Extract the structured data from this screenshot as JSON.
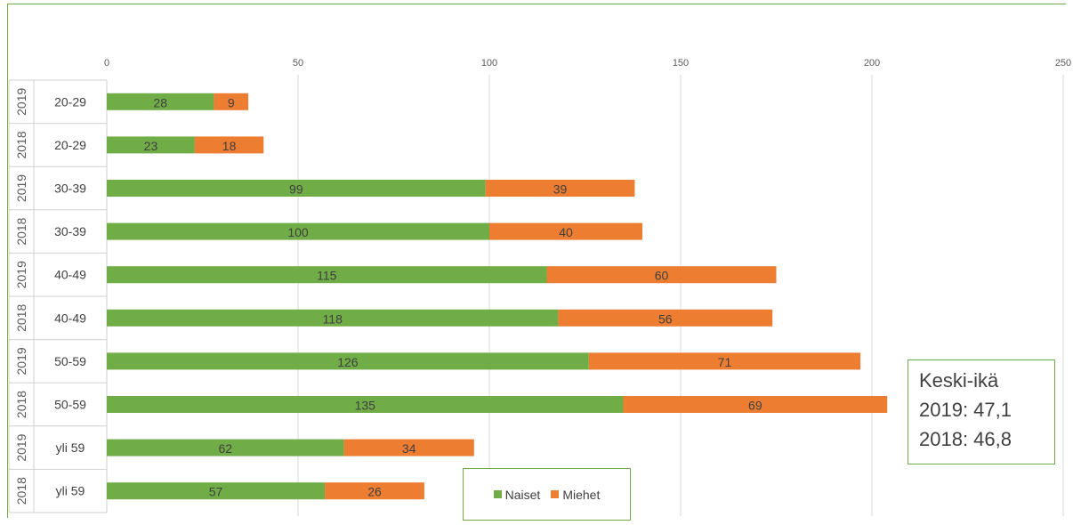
{
  "chart_data": {
    "type": "bar",
    "orientation": "horizontal",
    "stacked": true,
    "xlim": [
      0,
      250
    ],
    "x_ticks": [
      "0",
      "50",
      "100",
      "150",
      "200",
      "250"
    ],
    "grid": true,
    "legend_position": "bottom-center",
    "categories": [
      {
        "year": "2019",
        "age": "20-29"
      },
      {
        "year": "2018",
        "age": "20-29"
      },
      {
        "year": "2019",
        "age": "30-39"
      },
      {
        "year": "2018",
        "age": "30-39"
      },
      {
        "year": "2019",
        "age": "40-49"
      },
      {
        "year": "2018",
        "age": "40-49"
      },
      {
        "year": "2019",
        "age": "50-59"
      },
      {
        "year": "2018",
        "age": "50-59"
      },
      {
        "year": "2019",
        "age": "yli 59"
      },
      {
        "year": "2018",
        "age": "yli 59"
      }
    ],
    "series": [
      {
        "name": "Naiset",
        "color": "#70ad47",
        "values": [
          28,
          23,
          99,
          100,
          115,
          118,
          126,
          135,
          62,
          57
        ]
      },
      {
        "name": "Miehet",
        "color": "#ed7d31",
        "values": [
          9,
          18,
          39,
          40,
          60,
          56,
          71,
          69,
          34,
          26
        ]
      }
    ]
  },
  "note": {
    "lines": [
      "Keski-ikä",
      "2019: 47,1",
      "2018: 46,8"
    ]
  }
}
